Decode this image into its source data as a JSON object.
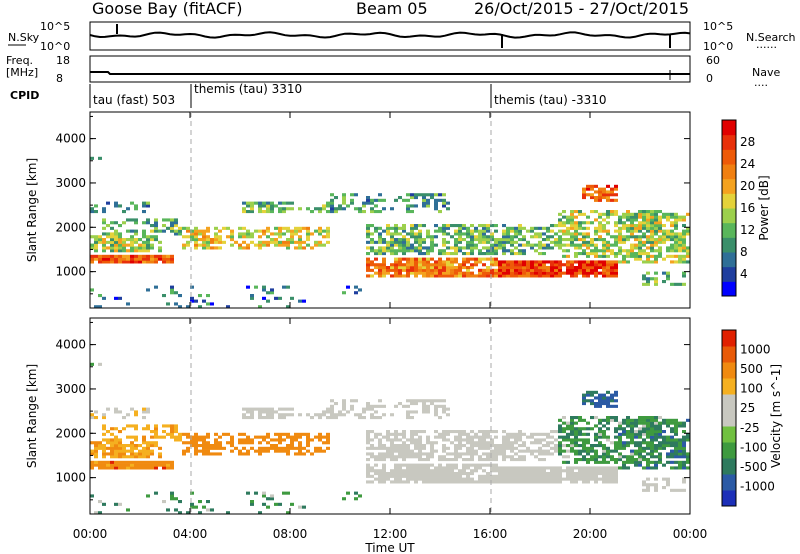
{
  "title": {
    "station": "Goose Bay (fitACF)",
    "beam": "Beam 05",
    "dates": "26/Oct/2015 - 27/Oct/2015"
  },
  "header": {
    "nsky_label": "N.Sky",
    "nsearch_label": "N.Search",
    "freq_label_1": "Freq.",
    "freq_label_2": "[MHz]",
    "nave_label": "Nave",
    "cpid_label": "CPID",
    "dots": "......",
    "dots_short": "....",
    "noise_ticks_left": [
      "10^5",
      "10^0"
    ],
    "noise_ticks_right": [
      "10^5",
      "10^0"
    ],
    "freq_ticks": [
      "18",
      "8"
    ],
    "nave_ticks": [
      "60",
      "0"
    ]
  },
  "cpid": [
    {
      "label": "tau (fast) 503"
    },
    {
      "label": "themis (tau) 3310"
    },
    {
      "label": "themis (tau) -3310"
    }
  ],
  "colors": {
    "power_scale": [
      "#0000ff",
      "#1f3e9e",
      "#2f6f97",
      "#3a8f6a",
      "#59b65b",
      "#9cd04c",
      "#e4d23a",
      "#f4a21f",
      "#f07f10",
      "#ee5a08",
      "#e8300a",
      "#e00000"
    ],
    "velocity_scale": [
      "#1c2fb8",
      "#2b5aa5",
      "#2e7a5e",
      "#3e9a3f",
      "#70c040",
      "#c8c8c0",
      "#c8c8c0",
      "#f5b020",
      "#f08a10",
      "#e85a08",
      "#e02000"
    ]
  },
  "chart_data": [
    {
      "type": "heatmap",
      "name": "power",
      "ylabel": "Slant Range [km]",
      "xlabel": "Time UT",
      "xticks": [
        "00:00",
        "04:00",
        "08:00",
        "12:00",
        "16:00",
        "20:00",
        "00:00"
      ],
      "yticks": [
        1000,
        2000,
        3000,
        4000
      ],
      "ylim": [
        180,
        4600
      ],
      "colorbar_label": "Power [dB]",
      "colorbar_ticks": [
        4,
        8,
        12,
        16,
        20,
        24,
        28
      ]
    },
    {
      "type": "heatmap",
      "name": "velocity",
      "ylabel": "Slant Range [km]",
      "xlabel": "Time UT",
      "xticks": [
        "00:00",
        "04:00",
        "08:00",
        "12:00",
        "16:00",
        "20:00",
        "00:00"
      ],
      "yticks": [
        1000,
        2000,
        3000,
        4000
      ],
      "ylim": [
        180,
        4600
      ],
      "colorbar_label": "Velocity [m s^-1]",
      "colorbar_ticks": [
        "1000",
        "500",
        "100",
        "25",
        "-25",
        "-100",
        "-500",
        "-1000"
      ]
    }
  ]
}
